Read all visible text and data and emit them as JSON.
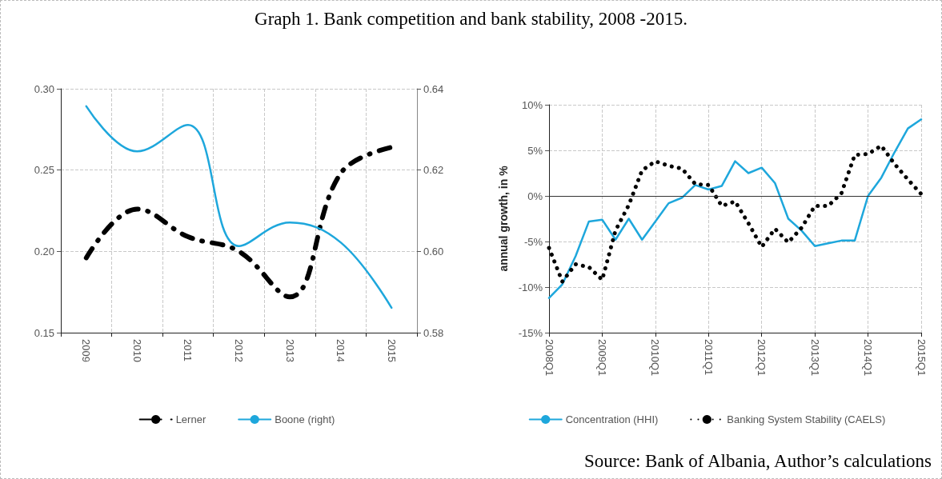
{
  "chart_data": [
    {
      "type": "line",
      "title": "Graph 1. Bank competition and bank stability, 2008 -2015.",
      "categories": [
        "2009",
        "2010",
        "2011",
        "2012",
        "2013",
        "2014",
        "2015"
      ],
      "series": [
        {
          "name": "Lerner",
          "color": "#000000",
          "line_style": "dashed",
          "values": [
            0.196,
            0.226,
            0.209,
            0.2,
            0.172,
            0.248,
            0.264
          ]
        },
        {
          "name": "Boone (right)",
          "color": "#1ea7dc",
          "axis": "y2",
          "line_style": "solid",
          "values": [
            0.6357,
            0.6246,
            0.6311,
            0.6013,
            0.6071,
            0.6022,
            0.5861
          ]
        }
      ],
      "ylim": [
        0.15,
        0.3
      ],
      "yticks": [
        {
          "value": 0.15,
          "label": "0.15"
        },
        {
          "value": 0.2,
          "label": "0.20"
        },
        {
          "value": 0.25,
          "label": "0.25"
        },
        {
          "value": 0.3,
          "label": "0.30"
        }
      ],
      "y2lim": [
        0.58,
        0.64
      ],
      "y2ticks": [
        {
          "value": 0.58,
          "label": "0.58"
        },
        {
          "value": 0.6,
          "label": "0.60"
        },
        {
          "value": 0.62,
          "label": "0.62"
        },
        {
          "value": 0.64,
          "label": "0.64"
        }
      ],
      "grid": true,
      "legend": "bottom",
      "marker": "none"
    },
    {
      "type": "line",
      "ylabel": "annual growth, in %",
      "annotations": [
        "Source: Bank of Albania, Author’s calculations"
      ],
      "categories": [
        "2008Q1",
        null,
        null,
        null,
        "2009Q1",
        null,
        null,
        null,
        "2010Q1",
        null,
        null,
        null,
        "2011Q1",
        null,
        null,
        null,
        "2012Q1",
        null,
        null,
        null,
        "2013Q1",
        null,
        null,
        null,
        "2014Q1",
        null,
        null,
        null,
        "2015Q1"
      ],
      "series": [
        {
          "name": "Concentration (HHI)",
          "color": "#1ea7dc",
          "line_style": "solid",
          "values": [
            -11.2,
            -9.7,
            -6.6,
            -2.8,
            -2.6,
            -4.8,
            -2.5,
            -4.8,
            -2.8,
            -0.8,
            -0.2,
            1.2,
            0.7,
            1.1,
            3.8,
            2.5,
            3.1,
            1.4,
            -2.5,
            -3.8,
            -5.5,
            -5.2,
            -4.9,
            -4.9,
            0,
            2.0,
            4.8,
            7.4,
            8.4
          ]
        },
        {
          "name": "Banking System Stability (CAELS)",
          "color": "#000000",
          "line_style": "dotted",
          "values": [
            -5.7,
            -9.4,
            -7.5,
            -7.8,
            -9.2,
            -3.8,
            -1.0,
            2.8,
            3.8,
            3.3,
            3.0,
            1.3,
            1.2,
            -1.1,
            -0.6,
            -3.0,
            -5.6,
            -3.6,
            -5.1,
            -3.5,
            -1.1,
            -1.1,
            0.3,
            4.5,
            4.6,
            5.5,
            3.5,
            1.8,
            0.2
          ]
        }
      ],
      "ylim": [
        -15,
        10
      ],
      "yticks": [
        {
          "value": -15,
          "label": "-15%"
        },
        {
          "value": -10,
          "label": "-10%"
        },
        {
          "value": -5,
          "label": "-5%"
        },
        {
          "value": 0,
          "label": "0%"
        },
        {
          "value": 5,
          "label": "5%"
        },
        {
          "value": 10,
          "label": "10%"
        }
      ],
      "ref_lines": [
        {
          "axis": "y",
          "value": 0,
          "color": "#333333"
        }
      ],
      "grid": true,
      "legend": "bottom",
      "marker": "none"
    }
  ]
}
